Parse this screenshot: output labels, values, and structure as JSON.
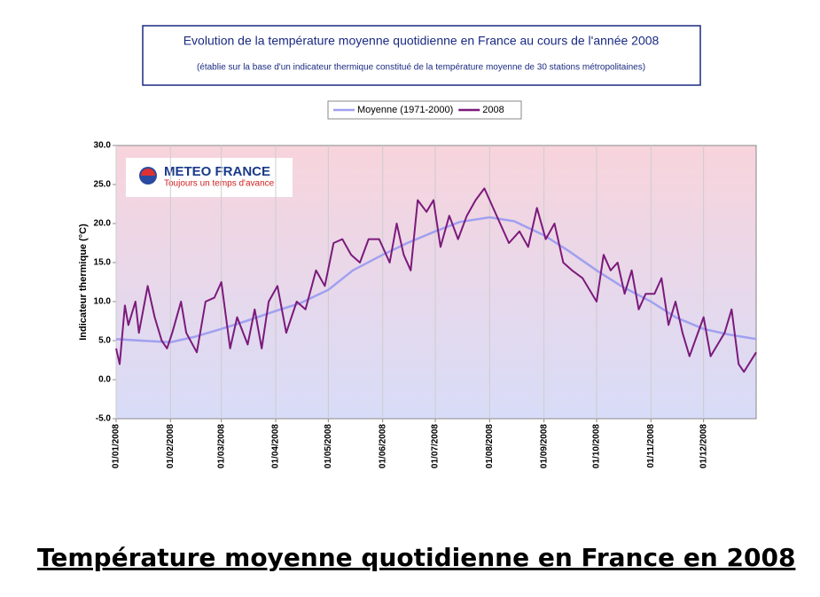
{
  "chart_data": {
    "type": "line",
    "title": "Evolution de la température moyenne quotidienne en France au cours de l'année 2008",
    "subtitle": "(établie sur la base d'un indicateur thermique constitué de la température moyenne de 30 stations métropolitaines)",
    "ylabel": "Indicateur thermique (°C)",
    "logo": {
      "name": "METEO FRANCE",
      "tagline": "Toujours un temps d'avance"
    },
    "caption": "Température moyenne quotidienne en France en 2008",
    "xlim": [
      "01/01/2008",
      "31/12/2008"
    ],
    "xticks": [
      "01/01/2008",
      "01/02/2008",
      "01/03/2008",
      "01/04/2008",
      "01/05/2008",
      "01/06/2008",
      "01/07/2008",
      "01/08/2008",
      "01/09/2008",
      "01/10/2008",
      "01/11/2008",
      "01/12/2008"
    ],
    "ylim": [
      -5,
      30
    ],
    "yticks": [
      {
        "value": -5,
        "label": "-5.0"
      },
      {
        "value": 0,
        "label": "0.0"
      },
      {
        "value": 5,
        "label": "5.0"
      },
      {
        "value": 10,
        "label": "10.0"
      },
      {
        "value": 15,
        "label": "15.0"
      },
      {
        "value": 20,
        "label": "20.0"
      },
      {
        "value": 25,
        "label": "25.0"
      },
      {
        "value": 30,
        "label": "30.0"
      }
    ],
    "grid": "x",
    "series": [
      {
        "name": "Moyenne (1971-2000)",
        "color": "#a0a0f0",
        "x": [
          "01/01/2008",
          "15/01/2008",
          "01/02/2008",
          "15/02/2008",
          "01/03/2008",
          "15/03/2008",
          "01/04/2008",
          "15/04/2008",
          "01/05/2008",
          "15/05/2008",
          "01/06/2008",
          "15/06/2008",
          "01/07/2008",
          "15/07/2008",
          "01/08/2008",
          "15/08/2008",
          "01/09/2008",
          "15/09/2008",
          "01/10/2008",
          "15/10/2008",
          "01/11/2008",
          "15/11/2008",
          "01/12/2008",
          "15/12/2008",
          "31/12/2008"
        ],
        "values": [
          5.2,
          5.0,
          4.8,
          5.5,
          6.5,
          7.5,
          8.8,
          9.8,
          11.5,
          14,
          16,
          17.5,
          19,
          20.2,
          20.8,
          20.3,
          18.5,
          16.5,
          14,
          12,
          10,
          8,
          6.5,
          5.8,
          5.2
        ]
      },
      {
        "name": "2008",
        "color": "#7b1a7b",
        "x": [
          "01/01/2008",
          "03/01/2008",
          "06/01/2008",
          "08/01/2008",
          "12/01/2008",
          "14/01/2008",
          "19/01/2008",
          "23/01/2008",
          "27/01/2008",
          "30/01/2008",
          "02/02/2008",
          "07/02/2008",
          "10/02/2008",
          "16/02/2008",
          "21/02/2008",
          "26/02/2008",
          "01/03/2008",
          "06/03/2008",
          "10/03/2008",
          "16/03/2008",
          "20/03/2008",
          "24/03/2008",
          "28/03/2008",
          "02/04/2008",
          "07/04/2008",
          "13/04/2008",
          "18/04/2008",
          "24/04/2008",
          "29/04/2008",
          "04/05/2008",
          "09/05/2008",
          "14/05/2008",
          "19/05/2008",
          "24/05/2008",
          "30/05/2008",
          "05/06/2008",
          "09/06/2008",
          "13/06/2008",
          "17/06/2008",
          "21/06/2008",
          "26/06/2008",
          "30/06/2008",
          "04/07/2008",
          "09/07/2008",
          "14/07/2008",
          "19/07/2008",
          "24/07/2008",
          "29/07/2008",
          "03/08/2008",
          "07/08/2008",
          "12/08/2008",
          "18/08/2008",
          "23/08/2008",
          "28/08/2008",
          "02/09/2008",
          "07/09/2008",
          "12/09/2008",
          "17/09/2008",
          "23/09/2008",
          "01/10/2008",
          "05/10/2008",
          "09/10/2008",
          "13/10/2008",
          "17/10/2008",
          "21/10/2008",
          "25/10/2008",
          "29/10/2008",
          "03/11/2008",
          "07/11/2008",
          "11/11/2008",
          "15/11/2008",
          "19/11/2008",
          "23/11/2008",
          "27/11/2008",
          "01/12/2008",
          "05/12/2008",
          "09/12/2008",
          "13/12/2008",
          "17/12/2008",
          "21/12/2008",
          "24/12/2008",
          "31/12/2008"
        ],
        "values": [
          4,
          2,
          9.5,
          7,
          10,
          6,
          12,
          8,
          5,
          4,
          6,
          10,
          6,
          3.5,
          10,
          10.5,
          12.5,
          4,
          8,
          4.5,
          9,
          4,
          10,
          12,
          6,
          10,
          9,
          14,
          12,
          17.5,
          18,
          16,
          15,
          18,
          18,
          15,
          20,
          16,
          14,
          23,
          21.5,
          23,
          17,
          21,
          18,
          21,
          23,
          24.5,
          22,
          20,
          17.5,
          19,
          17,
          22,
          18,
          20,
          15,
          14,
          13,
          10,
          16,
          14,
          15,
          11,
          14,
          9,
          11,
          11,
          13,
          7,
          10,
          6,
          3,
          5.5,
          8,
          3,
          4.5,
          6,
          9,
          2,
          1,
          3.5
        ]
      }
    ]
  }
}
